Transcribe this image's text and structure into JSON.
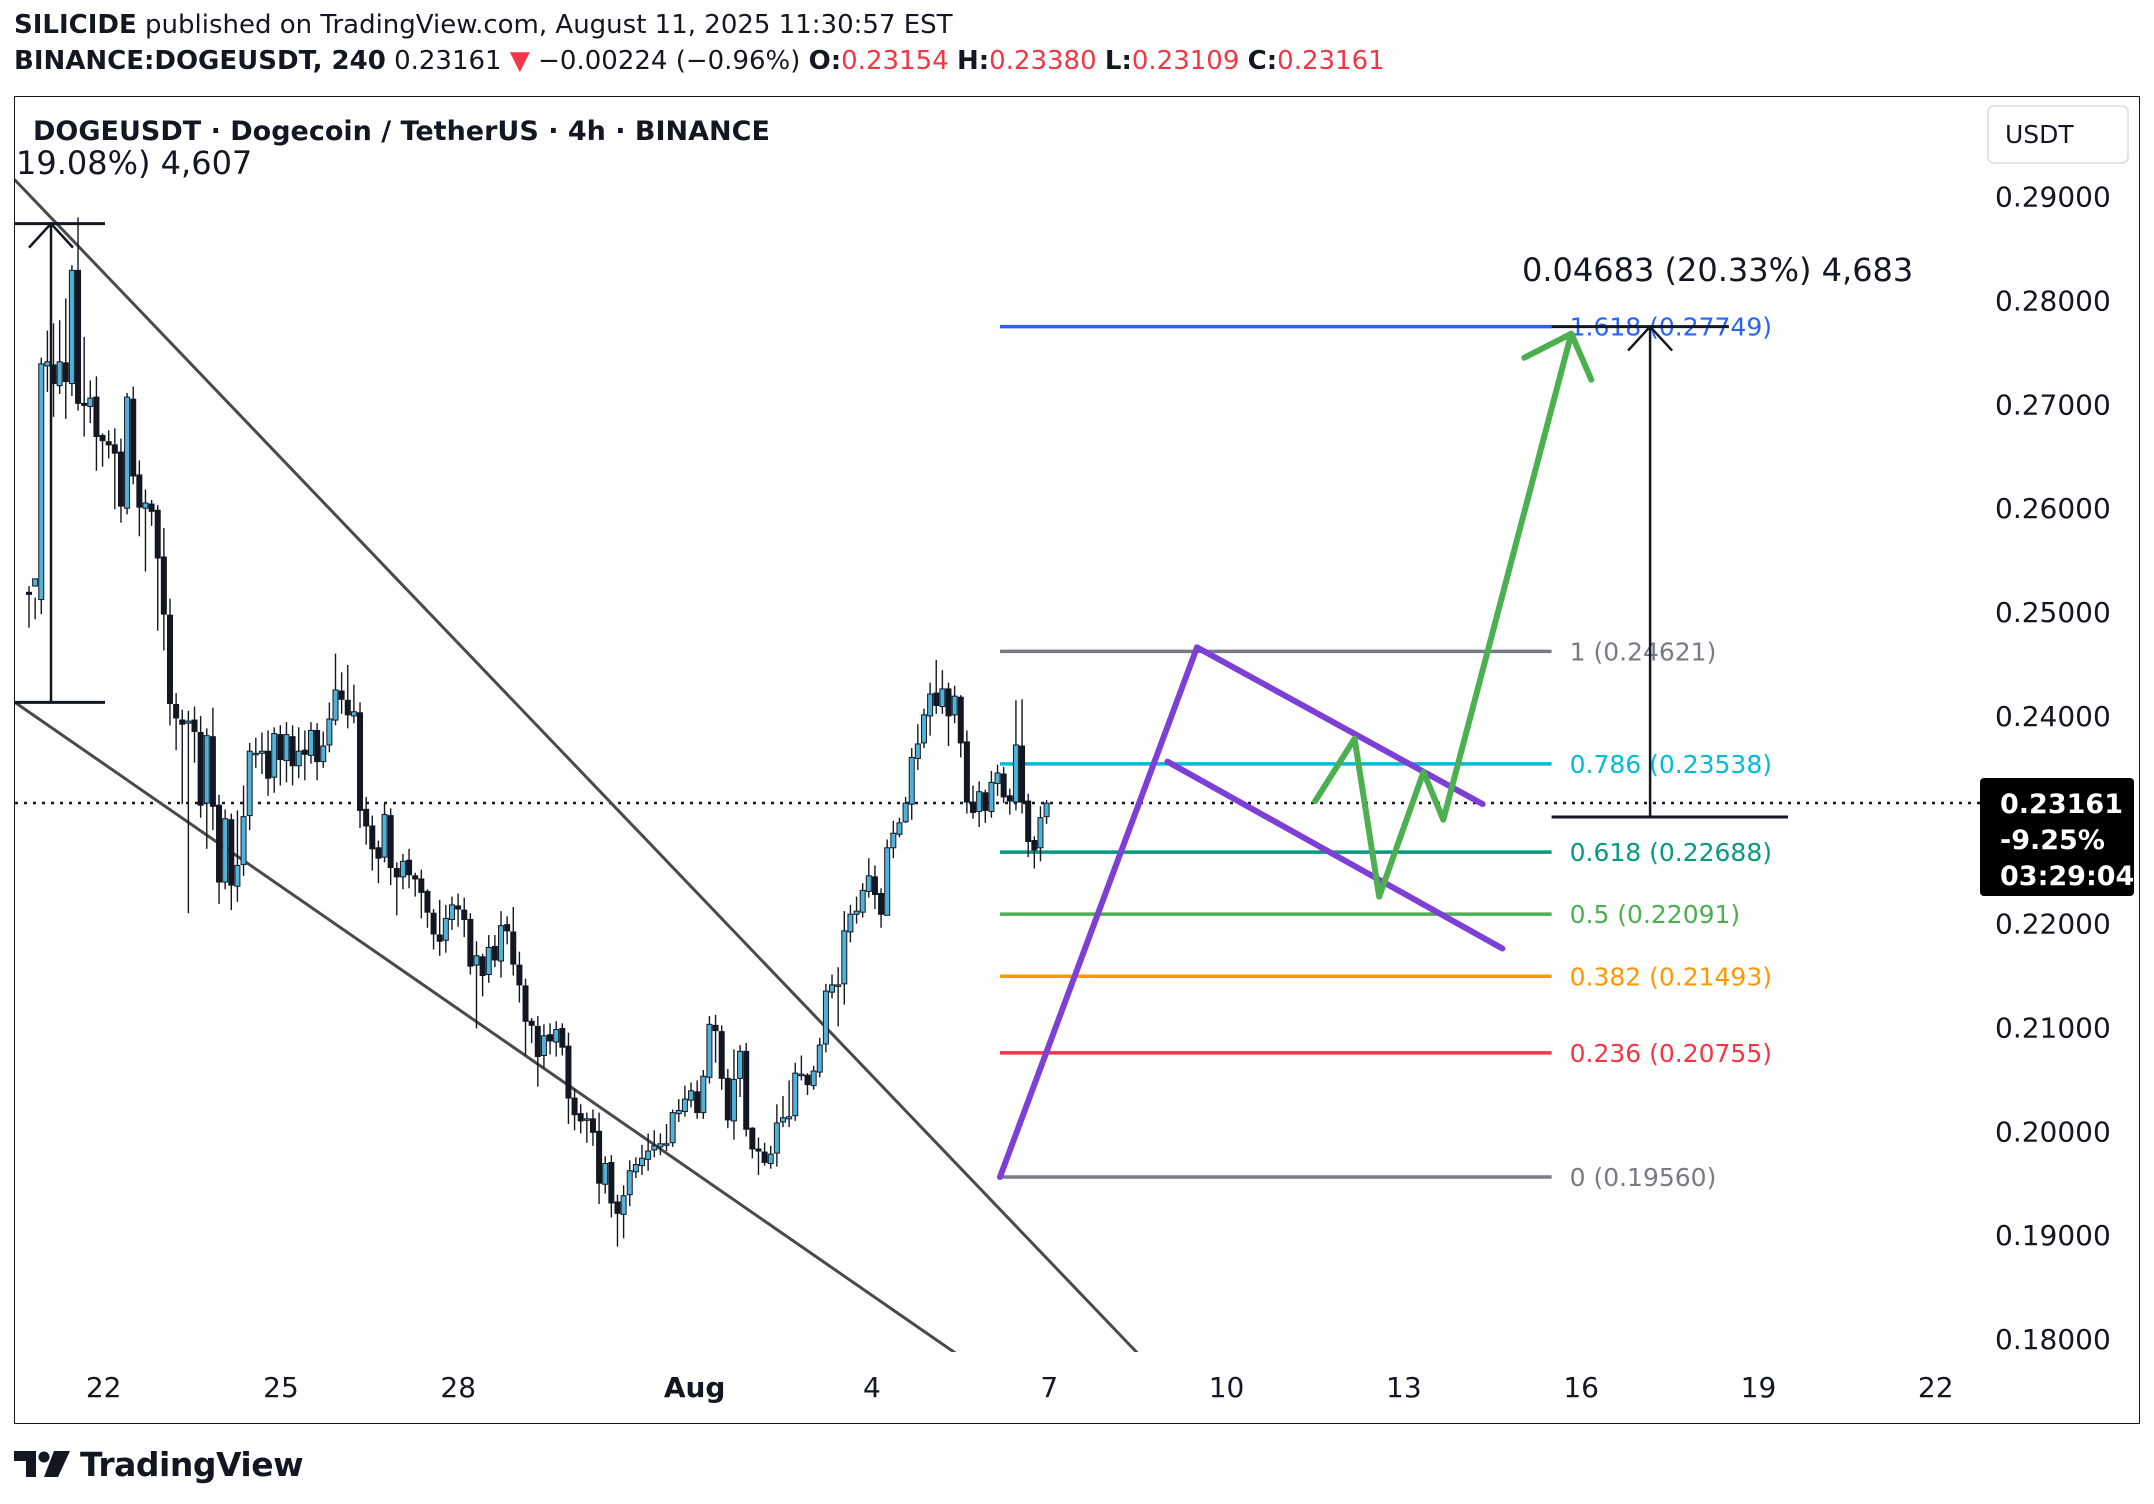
{
  "header": {
    "author": "SILICIDE",
    "published": "published on TradingView.com, August 11, 2025 11:30:57 EST",
    "symbol": "BINANCE:DOGEUSDT, 240",
    "last": "0.23161",
    "arrow": "▼",
    "change": "−0.00224 (−0.96%)",
    "o_label": "O:",
    "o_value": "0.23154",
    "h_label": "H:",
    "h_value": "0.23380",
    "l_label": "L:",
    "l_value": "0.23109",
    "c_label": "C:",
    "c_value": "0.23161"
  },
  "chart_title": "DOGEUSDT · Dogecoin / TetherUS · 4h · BINANCE",
  "measure_left_label": "19.08%) 4,607",
  "measure_right_label": "0.04683 (20.33%) 4,683",
  "currency_button": "USDT",
  "price_tag": {
    "price": "0.23161",
    "change": "-9.25%",
    "countdown": "03:29:04"
  },
  "colors": {
    "up": "#26a69a",
    "down": "#131722",
    "fill_up": "#4fb3d9",
    "purple": "#7e3fd6",
    "green_path": "#4caf50",
    "red": "#f23645"
  },
  "footer": {
    "brand": "TradingView"
  },
  "chart_data": {
    "type": "candlestick",
    "title": "DOGEUSDT · Dogecoin / TetherUS · 4h · BINANCE",
    "y_axis": {
      "ticks": [
        "0.29000",
        "0.28000",
        "0.27000",
        "0.26000",
        "0.25000",
        "0.24000",
        "0.22000",
        "0.21000",
        "0.20000",
        "0.19000",
        "0.18000"
      ],
      "ylim": [
        0.1775,
        0.2945
      ],
      "side": "right"
    },
    "x_axis": {
      "ticks": [
        "22",
        "25",
        "28",
        "Aug",
        "4",
        "7",
        "10",
        "13",
        "16",
        "19",
        "22"
      ],
      "dates": [
        "2025-07-22",
        "2025-07-25",
        "2025-07-28",
        "2025-08-01",
        "2025-08-04",
        "2025-08-07",
        "2025-08-10",
        "2025-08-13",
        "2025-08-16",
        "2025-08-19",
        "2025-08-22"
      ],
      "xlim": [
        "2025-07-20T12:00",
        "2025-08-23T12:00"
      ]
    },
    "current_price": 0.23161,
    "fibonacci": [
      {
        "level": "1.618",
        "value": 0.27749,
        "color": "#2962ff"
      },
      {
        "level": "1",
        "value": 0.24621,
        "color": "#787b86"
      },
      {
        "level": "0.786",
        "value": 0.23538,
        "color": "#00bcd4"
      },
      {
        "level": "0.618",
        "value": 0.22688,
        "color": "#089981"
      },
      {
        "level": "0.5",
        "value": 0.22091,
        "color": "#4caf50"
      },
      {
        "level": "0.382",
        "value": 0.21493,
        "color": "#ff9800"
      },
      {
        "level": "0.236",
        "value": 0.20755,
        "color": "#f23645"
      },
      {
        "level": "0",
        "value": 0.1956,
        "color": "#787b86"
      }
    ],
    "trendlines": [
      {
        "from": [
          "2025-07-20T12:00",
          0.2916
        ],
        "to": [
          "2025-08-08T12:00",
          0.1786
        ],
        "color": "#4a4a4a"
      },
      {
        "from": [
          "2025-07-20T12:00",
          0.2413
        ],
        "to": [
          "2025-08-05T12:00",
          0.1783
        ],
        "color": "#4a4a4a"
      },
      {
        "from": [
          "2025-08-06T04:00",
          0.1956
        ],
        "to": [
          "2025-08-09T12:00",
          0.2466
        ],
        "color": "#7e3fd6"
      },
      {
        "from": [
          "2025-08-09T12:00",
          0.2466
        ],
        "to": [
          "2025-08-14T08:00",
          0.2315
        ],
        "color": "#7e3fd6"
      },
      {
        "from": [
          "2025-08-09T00:00",
          0.2356
        ],
        "to": [
          "2025-08-14T16:00",
          0.2176
        ],
        "color": "#7e3fd6"
      }
    ],
    "projection": [
      [
        "2025-08-11T12:00",
        0.2318
      ],
      [
        "2025-08-12T04:00",
        0.2378
      ],
      [
        "2025-08-12T14:00",
        0.2226
      ],
      [
        "2025-08-13T08:00",
        0.2346
      ],
      [
        "2025-08-13T16:00",
        0.23
      ],
      [
        "2025-08-15T20:00",
        0.2768
      ]
    ],
    "candles_ohlc": [
      [
        0.2519,
        0.2517,
        0.2485,
        0.2525
      ],
      [
        0.2525,
        0.2532,
        0.2493,
        0.2514
      ],
      [
        0.2512,
        0.2739,
        0.2498,
        0.2745
      ],
      [
        0.2737,
        0.2741,
        0.2712,
        0.2771
      ],
      [
        0.2738,
        0.272,
        0.2688,
        0.2778
      ],
      [
        0.2718,
        0.2741,
        0.271,
        0.2781
      ],
      [
        0.274,
        0.2722,
        0.2686,
        0.2802
      ],
      [
        0.272,
        0.2829,
        0.2708,
        0.2834
      ],
      [
        0.2829,
        0.2701,
        0.2694,
        0.288
      ],
      [
        0.2701,
        0.2699,
        0.2669,
        0.2765
      ],
      [
        0.2698,
        0.2706,
        0.2682,
        0.2723
      ],
      [
        0.2707,
        0.2669,
        0.2636,
        0.2727
      ],
      [
        0.267,
        0.2665,
        0.264,
        0.2672
      ],
      [
        0.2664,
        0.2661,
        0.2648,
        0.2675
      ],
      [
        0.2661,
        0.2653,
        0.2599,
        0.2677
      ],
      [
        0.2654,
        0.2602,
        0.2586,
        0.2667
      ],
      [
        0.26,
        0.2707,
        0.2594,
        0.2711
      ],
      [
        0.2705,
        0.2631,
        0.2623,
        0.2717
      ],
      [
        0.2632,
        0.2601,
        0.2573,
        0.2646
      ],
      [
        0.26,
        0.2605,
        0.2539,
        0.2618
      ],
      [
        0.2604,
        0.2597,
        0.2583,
        0.2608
      ],
      [
        0.2598,
        0.2552,
        0.2482,
        0.2603
      ],
      [
        0.2553,
        0.2498,
        0.2463,
        0.2581
      ],
      [
        0.2497,
        0.2412,
        0.2391,
        0.2513
      ],
      [
        0.2411,
        0.2398,
        0.2367,
        0.2422
      ],
      [
        0.2396,
        0.2392,
        0.2315,
        0.2406
      ],
      [
        0.2393,
        0.2395,
        0.221,
        0.2405
      ],
      [
        0.2396,
        0.2385,
        0.2355,
        0.2409
      ],
      [
        0.2384,
        0.2314,
        0.2302,
        0.24
      ],
      [
        0.2316,
        0.2381,
        0.2272,
        0.2388
      ],
      [
        0.238,
        0.2313,
        0.229,
        0.2408
      ],
      [
        0.2314,
        0.224,
        0.2219,
        0.2324
      ],
      [
        0.224,
        0.2301,
        0.2233,
        0.231
      ],
      [
        0.23,
        0.2237,
        0.2213,
        0.2306
      ],
      [
        0.2236,
        0.2256,
        0.2221,
        0.2309
      ],
      [
        0.2257,
        0.2303,
        0.2246,
        0.2333
      ],
      [
        0.2304,
        0.2366,
        0.229,
        0.2374
      ],
      [
        0.2364,
        0.2364,
        0.235,
        0.2379
      ],
      [
        0.2364,
        0.2366,
        0.2344,
        0.2384
      ],
      [
        0.2366,
        0.234,
        0.2323,
        0.2386
      ],
      [
        0.2341,
        0.2383,
        0.2326,
        0.2389
      ],
      [
        0.2382,
        0.2358,
        0.2333,
        0.2391
      ],
      [
        0.2357,
        0.2382,
        0.2336,
        0.2394
      ],
      [
        0.238,
        0.2352,
        0.2333,
        0.2391
      ],
      [
        0.2352,
        0.2366,
        0.234,
        0.2389
      ],
      [
        0.2367,
        0.2363,
        0.2338,
        0.2386
      ],
      [
        0.2362,
        0.2386,
        0.2354,
        0.2394
      ],
      [
        0.2386,
        0.2356,
        0.2338,
        0.2393
      ],
      [
        0.2356,
        0.2371,
        0.235,
        0.2385
      ],
      [
        0.2372,
        0.2397,
        0.2365,
        0.2413
      ],
      [
        0.2396,
        0.2425,
        0.2391,
        0.246
      ],
      [
        0.2424,
        0.2416,
        0.2402,
        0.2442
      ],
      [
        0.2415,
        0.2401,
        0.2388,
        0.2449
      ],
      [
        0.24,
        0.2404,
        0.2393,
        0.243
      ],
      [
        0.2403,
        0.2309,
        0.2292,
        0.2413
      ],
      [
        0.231,
        0.2294,
        0.2276,
        0.2322
      ],
      [
        0.2294,
        0.2272,
        0.2251,
        0.2304
      ],
      [
        0.2273,
        0.2263,
        0.2239,
        0.228
      ],
      [
        0.2264,
        0.2305,
        0.2259,
        0.2316
      ],
      [
        0.2304,
        0.2254,
        0.2237,
        0.2311
      ],
      [
        0.2253,
        0.2245,
        0.2208,
        0.2259
      ],
      [
        0.2245,
        0.226,
        0.2233,
        0.2267
      ],
      [
        0.2261,
        0.2247,
        0.2234,
        0.2272
      ],
      [
        0.2246,
        0.2243,
        0.2226,
        0.2249
      ],
      [
        0.2243,
        0.223,
        0.2205,
        0.2252
      ],
      [
        0.2231,
        0.2211,
        0.2196,
        0.2233
      ],
      [
        0.221,
        0.219,
        0.2175,
        0.2214
      ],
      [
        0.2189,
        0.2183,
        0.2169,
        0.2223
      ],
      [
        0.2184,
        0.2205,
        0.2172,
        0.2218
      ],
      [
        0.2204,
        0.2218,
        0.2194,
        0.2226
      ],
      [
        0.2217,
        0.2214,
        0.2197,
        0.2229
      ],
      [
        0.2213,
        0.2204,
        0.2187,
        0.2225
      ],
      [
        0.2204,
        0.2159,
        0.2151,
        0.221
      ],
      [
        0.216,
        0.2169,
        0.2099,
        0.2183
      ],
      [
        0.2168,
        0.215,
        0.213,
        0.2171
      ],
      [
        0.2151,
        0.2177,
        0.2143,
        0.2189
      ],
      [
        0.2178,
        0.2165,
        0.2158,
        0.2189
      ],
      [
        0.2164,
        0.2198,
        0.2148,
        0.2212
      ],
      [
        0.2199,
        0.2193,
        0.218,
        0.2207
      ],
      [
        0.2192,
        0.2161,
        0.215,
        0.2216
      ],
      [
        0.216,
        0.2141,
        0.2124,
        0.2173
      ],
      [
        0.214,
        0.2106,
        0.2073,
        0.2147
      ],
      [
        0.2106,
        0.2102,
        0.2085,
        0.2109
      ],
      [
        0.2101,
        0.2072,
        0.2043,
        0.2111
      ],
      [
        0.2073,
        0.2092,
        0.2061,
        0.2103
      ],
      [
        0.2093,
        0.2087,
        0.2074,
        0.2104
      ],
      [
        0.2086,
        0.2098,
        0.2072,
        0.2106
      ],
      [
        0.2099,
        0.2081,
        0.2073,
        0.2104
      ],
      [
        0.2082,
        0.2032,
        0.2007,
        0.2095
      ],
      [
        0.2032,
        0.2016,
        0.2001,
        0.2041
      ],
      [
        0.2017,
        0.201,
        0.1998,
        0.2026
      ],
      [
        0.2011,
        0.2012,
        0.1989,
        0.2018
      ],
      [
        0.2012,
        0.1999,
        0.1986,
        0.2021
      ],
      [
        0.2,
        0.195,
        0.193,
        0.2018
      ],
      [
        0.1949,
        0.1969,
        0.194,
        0.1976
      ],
      [
        0.197,
        0.1931,
        0.1917,
        0.1977
      ],
      [
        0.1932,
        0.1921,
        0.1889,
        0.1939
      ],
      [
        0.192,
        0.1938,
        0.1897,
        0.1948
      ],
      [
        0.1939,
        0.1962,
        0.1928,
        0.1972
      ],
      [
        0.1961,
        0.1968,
        0.1955,
        0.1975
      ],
      [
        0.1967,
        0.1974,
        0.1958,
        0.1987
      ],
      [
        0.1973,
        0.1981,
        0.1962,
        0.1998
      ],
      [
        0.1982,
        0.1986,
        0.1975,
        0.2001
      ],
      [
        0.1985,
        0.1988,
        0.1977,
        0.1998
      ],
      [
        0.1987,
        0.1988,
        0.1981,
        0.2007
      ],
      [
        0.1989,
        0.2018,
        0.1985,
        0.2021
      ],
      [
        0.2017,
        0.202,
        0.2009,
        0.2031
      ],
      [
        0.2019,
        0.2031,
        0.2014,
        0.2044
      ],
      [
        0.203,
        0.2039,
        0.2023,
        0.2047
      ],
      [
        0.2038,
        0.2018,
        0.2012,
        0.2049
      ],
      [
        0.2018,
        0.2053,
        0.2012,
        0.2059
      ],
      [
        0.2052,
        0.2103,
        0.2046,
        0.2111
      ],
      [
        0.2102,
        0.2097,
        0.2066,
        0.2112
      ],
      [
        0.2096,
        0.2051,
        0.204,
        0.2102
      ],
      [
        0.2051,
        0.2011,
        0.2003,
        0.206
      ],
      [
        0.201,
        0.205,
        0.1992,
        0.2079
      ],
      [
        0.2051,
        0.2077,
        0.2033,
        0.2083
      ],
      [
        0.2077,
        0.2002,
        0.1995,
        0.2085
      ],
      [
        0.2003,
        0.1983,
        0.1974,
        0.2004
      ],
      [
        0.1983,
        0.1981,
        0.1958,
        0.1994
      ],
      [
        0.198,
        0.197,
        0.1967,
        0.1989
      ],
      [
        0.1969,
        0.1978,
        0.1964,
        0.1986
      ],
      [
        0.1979,
        0.2008,
        0.1966,
        0.2026
      ],
      [
        0.2009,
        0.2013,
        0.2004,
        0.2034
      ],
      [
        0.2012,
        0.2014,
        0.2004,
        0.2049
      ],
      [
        0.2015,
        0.2056,
        0.201,
        0.2066
      ],
      [
        0.2055,
        0.2055,
        0.2049,
        0.2073
      ],
      [
        0.2054,
        0.2045,
        0.2035,
        0.2056
      ],
      [
        0.2044,
        0.2058,
        0.204,
        0.2063
      ],
      [
        0.2057,
        0.2083,
        0.2052,
        0.209
      ],
      [
        0.2084,
        0.2135,
        0.2076,
        0.2142
      ],
      [
        0.2134,
        0.2141,
        0.2128,
        0.2151
      ],
      [
        0.214,
        0.2141,
        0.2101,
        0.2158
      ],
      [
        0.2142,
        0.2193,
        0.2122,
        0.2212
      ],
      [
        0.2192,
        0.2209,
        0.2182,
        0.2218
      ],
      [
        0.2209,
        0.2212,
        0.22,
        0.2226
      ],
      [
        0.2211,
        0.2232,
        0.2206,
        0.2239
      ],
      [
        0.2231,
        0.2246,
        0.2225,
        0.2263
      ],
      [
        0.2245,
        0.2228,
        0.2214,
        0.2256
      ],
      [
        0.2229,
        0.2209,
        0.2196,
        0.2234
      ],
      [
        0.2208,
        0.2273,
        0.221,
        0.2281
      ],
      [
        0.2273,
        0.2287,
        0.2263,
        0.2299
      ],
      [
        0.2286,
        0.2297,
        0.2283,
        0.2302
      ],
      [
        0.2298,
        0.2316,
        0.2297,
        0.2322
      ],
      [
        0.2315,
        0.236,
        0.23,
        0.2369
      ],
      [
        0.2359,
        0.2373,
        0.2348,
        0.2392
      ],
      [
        0.2374,
        0.2401,
        0.2369,
        0.2407
      ],
      [
        0.24,
        0.2421,
        0.2381,
        0.2432
      ],
      [
        0.2422,
        0.241,
        0.2402,
        0.2454
      ],
      [
        0.2409,
        0.2426,
        0.2402,
        0.2444
      ],
      [
        0.2426,
        0.24,
        0.2371,
        0.2432
      ],
      [
        0.2401,
        0.2419,
        0.2393,
        0.2429
      ],
      [
        0.2418,
        0.2374,
        0.236,
        0.242
      ],
      [
        0.2375,
        0.2317,
        0.2306,
        0.2386
      ],
      [
        0.2317,
        0.2307,
        0.2301,
        0.2333
      ],
      [
        0.2308,
        0.2327,
        0.2293,
        0.2337
      ],
      [
        0.2326,
        0.2309,
        0.2297,
        0.2329
      ],
      [
        0.2308,
        0.2336,
        0.2302,
        0.2347
      ],
      [
        0.2335,
        0.2345,
        0.2323,
        0.2353
      ],
      [
        0.2344,
        0.2322,
        0.2316,
        0.2351
      ],
      [
        0.2323,
        0.2318,
        0.2305,
        0.233
      ],
      [
        0.2317,
        0.2372,
        0.2309,
        0.2415
      ],
      [
        0.2371,
        0.2317,
        0.2306,
        0.2416
      ],
      [
        0.2318,
        0.2279,
        0.2264,
        0.2325
      ],
      [
        0.228,
        0.2271,
        0.2253,
        0.2284
      ],
      [
        0.2273,
        0.2302,
        0.226,
        0.2313
      ],
      [
        0.2303,
        0.2316,
        0.2296,
        0.2319
      ]
    ]
  }
}
